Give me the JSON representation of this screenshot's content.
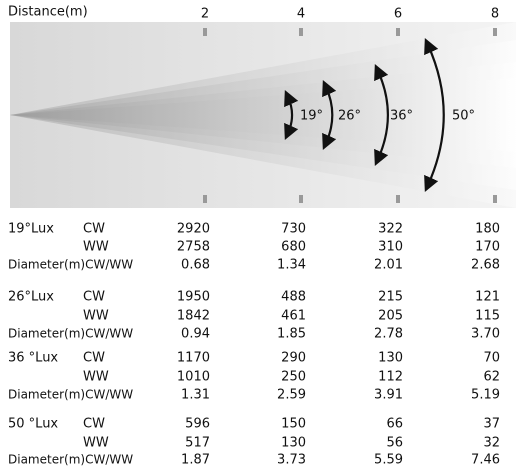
{
  "header": {
    "label": "Distance(m)",
    "distances": [
      "2",
      "4",
      "6",
      "8"
    ]
  },
  "angles": [
    "19°",
    "26°",
    "36°",
    "50°"
  ],
  "table": {
    "groups": [
      {
        "label": "19°Lux",
        "rows": [
          {
            "label": "CW",
            "values": [
              "2920",
              "730",
              "322",
              "180"
            ]
          },
          {
            "label": "WW",
            "values": [
              "2758",
              "680",
              "310",
              "170"
            ]
          },
          {
            "label": "Diameter(m)CW/WW",
            "values": [
              "0.68",
              "1.34",
              "2.01",
              "2.68"
            ]
          }
        ]
      },
      {
        "label": "26°Lux",
        "rows": [
          {
            "label": "CW",
            "values": [
              "1950",
              "488",
              "215",
              "121"
            ]
          },
          {
            "label": "WW",
            "values": [
              "1842",
              "461",
              "205",
              "115"
            ]
          },
          {
            "label": "Diameter(m)CW/WW",
            "values": [
              "0.94",
              "1.85",
              "2.78",
              "3.70"
            ]
          }
        ]
      },
      {
        "label": "36 °Lux",
        "rows": [
          {
            "label": "CW",
            "values": [
              "1170",
              "290",
              "130",
              "70"
            ]
          },
          {
            "label": "WW",
            "values": [
              "1010",
              "250",
              "112",
              "62"
            ]
          },
          {
            "label": "Diameter(m)CW/WW",
            "values": [
              "1.31",
              "2.59",
              "3.91",
              "5.19"
            ]
          }
        ]
      },
      {
        "label": "50 °Lux",
        "rows": [
          {
            "label": "CW",
            "values": [
              "596",
              "150",
              "66",
              "37"
            ]
          },
          {
            "label": "WW",
            "values": [
              "517",
              "130",
              "56",
              "32"
            ]
          },
          {
            "label": "Diameter(m)CW/WW",
            "values": [
              "1.87",
              "3.73",
              "5.59",
              "7.46"
            ]
          }
        ]
      }
    ]
  }
}
